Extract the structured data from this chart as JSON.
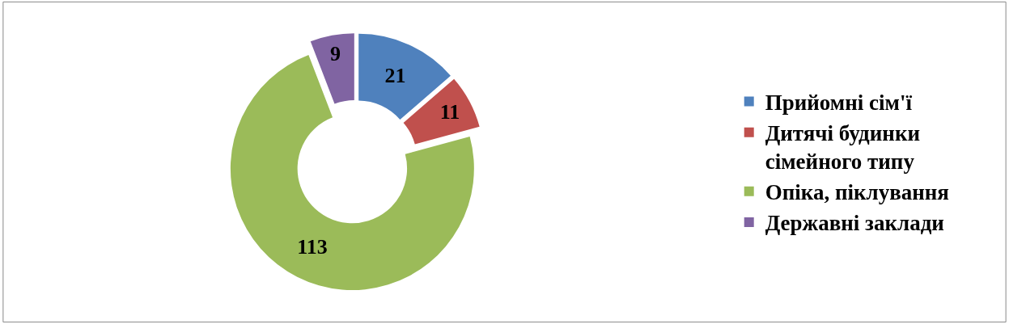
{
  "chart_data": {
    "type": "donut",
    "categories": [
      "Прийомні сім'ї",
      "Дитячі будинки сімейного типу",
      "Опіка, піклування",
      "Державні заклади"
    ],
    "values": [
      21,
      11,
      113,
      9
    ],
    "colors": [
      "#4f81bd",
      "#c0504d",
      "#9bbb59",
      "#8064a2"
    ],
    "data_labels": true,
    "legend": "right"
  }
}
